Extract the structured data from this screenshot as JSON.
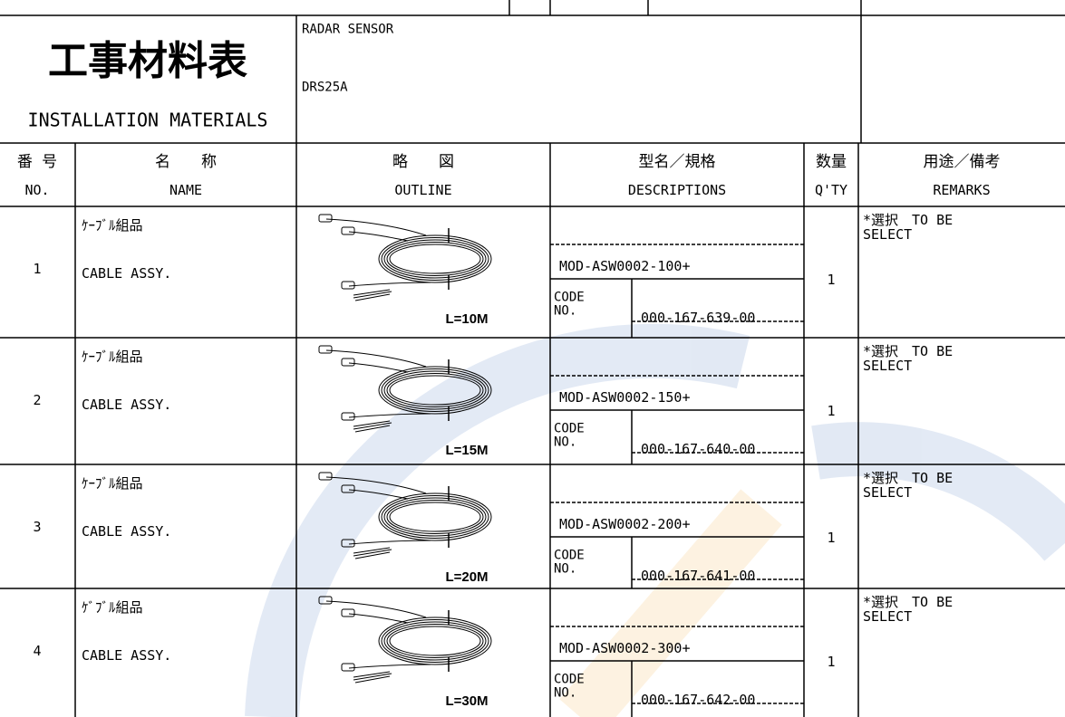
{
  "header": {
    "title": "工事材料表",
    "subtitle": "INSTALLATION MATERIALS",
    "product": "RADAR SENSOR",
    "model": "DRS25A"
  },
  "columns": [
    {
      "ja": "番 号",
      "en": "NO."
    },
    {
      "ja": "名　　称",
      "en": "NAME"
    },
    {
      "ja": "略　　図",
      "en": "OUTLINE"
    },
    {
      "ja": "型名／規格",
      "en": "DESCRIPTIONS"
    },
    {
      "ja": "数量",
      "en": "Q'TY"
    },
    {
      "ja": "用途／備考",
      "en": "REMARKS"
    }
  ],
  "rows": [
    {
      "no": "1",
      "name_ja": "ｹｰﾌﾞﾙ組品",
      "name_en": "CABLE ASSY.",
      "outline": "L=10M",
      "type": "MOD-ASW0002-100+",
      "code_label": "CODE",
      "no_label": "NO.",
      "code": "000-167-639-00",
      "qty": "1",
      "remarks": "*選択　TO BE SELECT"
    },
    {
      "no": "2",
      "name_ja": "ｹｰﾌﾞﾙ組品",
      "name_en": "CABLE ASSY.",
      "outline": "L=15M",
      "type": "MOD-ASW0002-150+",
      "code_label": "CODE",
      "no_label": "NO.",
      "code": "000-167-640-00",
      "qty": "1",
      "remarks": "*選択　TO BE SELECT"
    },
    {
      "no": "3",
      "name_ja": "ｹｰﾌﾞﾙ組品",
      "name_en": "CABLE ASSY.",
      "outline": "L=20M",
      "type": "MOD-ASW0002-200+",
      "code_label": "CODE",
      "no_label": "NO.",
      "code": "000-167-641-00",
      "qty": "1",
      "remarks": "*選択　TO BE SELECT"
    },
    {
      "no": "4",
      "name_ja": "ｹﾞﾌﾞﾙ組品",
      "name_en": "CABLE ASSY.",
      "outline": "L=30M",
      "type": "MOD-ASW0002-300+",
      "code_label": "CODE",
      "no_label": "NO.",
      "code": "000-167-642-00",
      "qty": "1",
      "remarks": "*選択　TO BE SELECT"
    }
  ]
}
